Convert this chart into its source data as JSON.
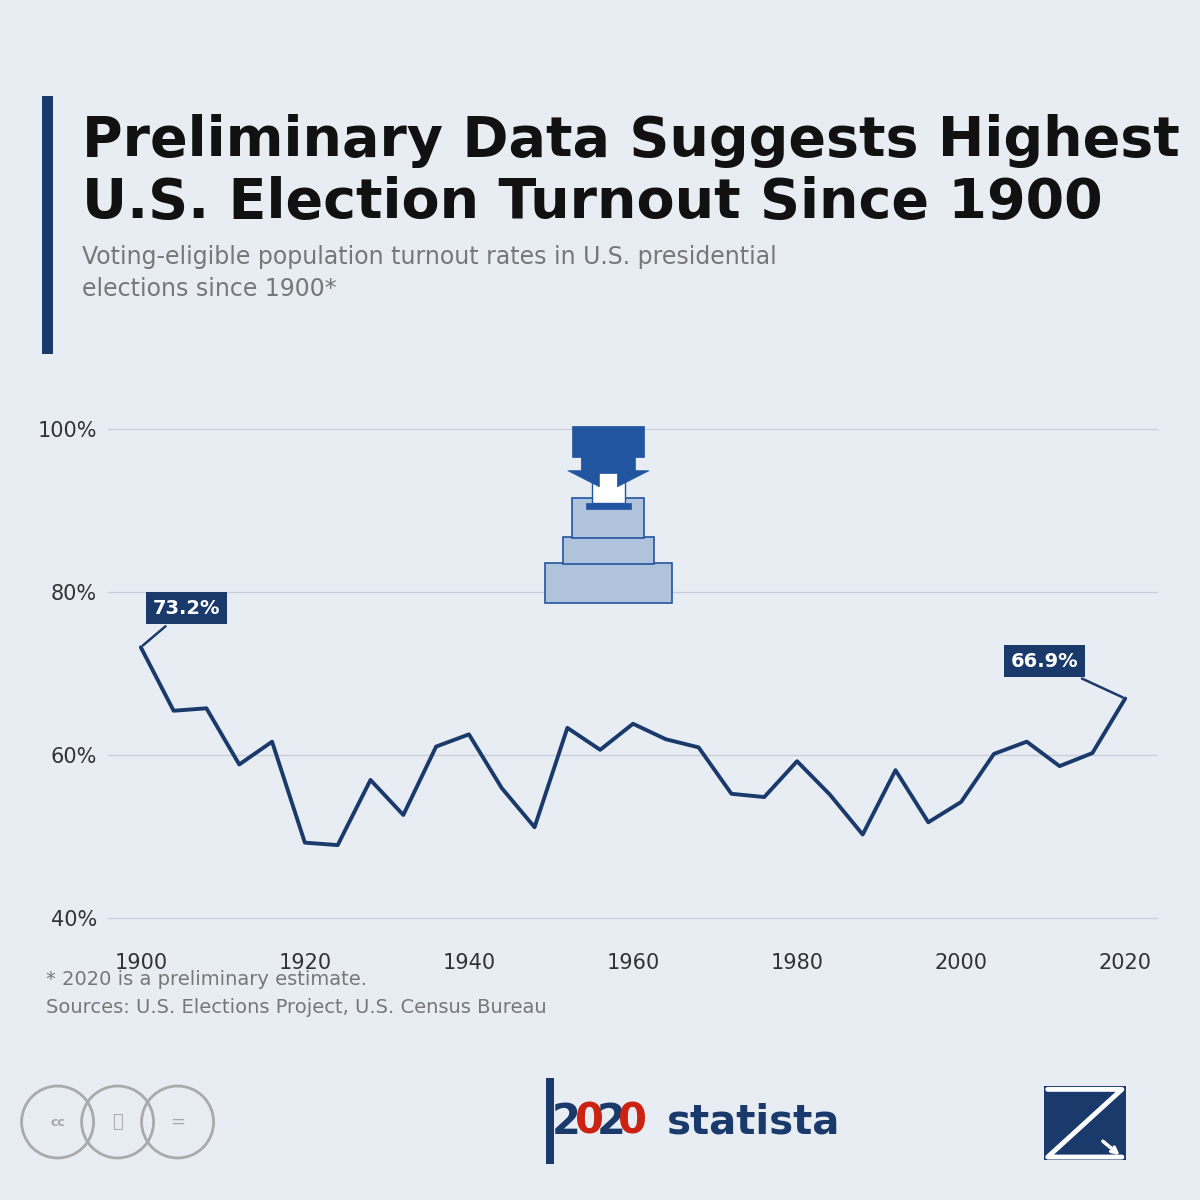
{
  "title_line1": "Preliminary Data Suggests Highest",
  "title_line2": "U.S. Election Turnout Since 1900",
  "subtitle": "Voting-eligible population turnout rates in U.S. presidential\nelections since 1900*",
  "footnote1": "* 2020 is a preliminary estimate.",
  "footnote2": "Sources: U.S. Elections Project, U.S. Census Bureau",
  "background_color": "#e8edf4",
  "line_color": "#1a3a6b",
  "accent_bar_color": "#1a3a6b",
  "years": [
    1900,
    1904,
    1908,
    1912,
    1916,
    1920,
    1924,
    1928,
    1932,
    1936,
    1940,
    1944,
    1948,
    1952,
    1956,
    1960,
    1964,
    1968,
    1972,
    1976,
    1980,
    1984,
    1988,
    1992,
    1996,
    2000,
    2004,
    2008,
    2012,
    2016,
    2020
  ],
  "values": [
    73.2,
    65.4,
    65.7,
    58.8,
    61.6,
    49.2,
    48.9,
    56.9,
    52.6,
    61.0,
    62.5,
    55.9,
    51.1,
    63.3,
    60.6,
    63.8,
    61.9,
    60.9,
    55.2,
    54.8,
    59.2,
    55.1,
    50.2,
    58.1,
    51.7,
    54.2,
    60.1,
    61.6,
    58.6,
    60.2,
    66.9
  ],
  "ylim": [
    37,
    107
  ],
  "yticks": [
    40,
    60,
    80,
    100
  ],
  "ytick_labels": [
    "40%",
    "60%",
    "80%",
    "100%"
  ],
  "xticks": [
    1900,
    1920,
    1940,
    1960,
    1980,
    2000,
    2020
  ],
  "annotation_1900": "73.2%",
  "annotation_2020": "66.9%",
  "annotation_color": "#ffffff",
  "annotation_bg": "#1a3a6b",
  "grid_color": "#c8cdd8",
  "tick_label_color": "#333333",
  "subtitle_color": "#777777",
  "footnote_color": "#777777",
  "icon_color": "#aaaaaa"
}
